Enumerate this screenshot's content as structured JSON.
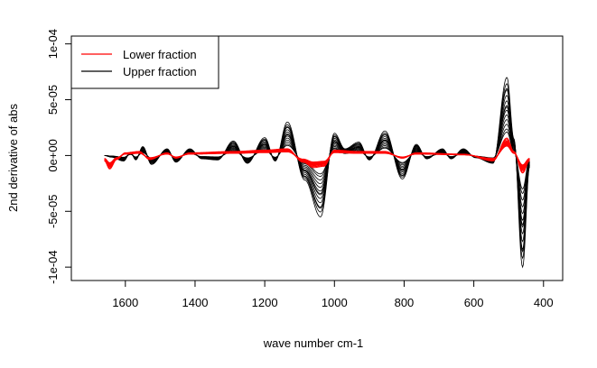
{
  "chart_data": {
    "type": "line",
    "title": "",
    "xlabel": "wave number cm-1",
    "ylabel": "2nd derivative of abs",
    "xlim": [
      1755,
      345
    ],
    "ylim": [
      -0.000112,
      0.000107
    ],
    "x_axis_reversed": true,
    "xticks": [
      1600,
      1400,
      1200,
      1000,
      800,
      600,
      400
    ],
    "xtick_labels": [
      "1600",
      "1400",
      "1200",
      "1000",
      "800",
      "600",
      "400"
    ],
    "yticks": [
      -0.0001,
      -5e-05,
      0,
      5e-05,
      0.0001
    ],
    "ytick_labels": [
      "-1e-04",
      "-5e-05",
      "0e+00",
      "5e-05",
      "1e-04"
    ],
    "grid": false,
    "legend": {
      "placement": "top-left",
      "entries": [
        {
          "label": "Lower fraction",
          "color": "#ff0000"
        },
        {
          "label": "Upper fraction",
          "color": "#000000"
        }
      ]
    },
    "x_range": [
      1660,
      440
    ],
    "series": [
      {
        "legend_label": "Upper fraction",
        "color": "#000000",
        "count": 14,
        "peaks": [
          {
            "x": 1660,
            "y": 0.0
          },
          {
            "x": 1640,
            "y": -1.5e-06
          },
          {
            "x": 1605,
            "y": -5e-06
          },
          {
            "x": 1585,
            "y": 3e-06
          },
          {
            "x": 1570,
            "y": -4e-06
          },
          {
            "x": 1550,
            "y": 8e-06
          },
          {
            "x": 1525,
            "y": -8e-06
          },
          {
            "x": 1480,
            "y": 6e-06
          },
          {
            "x": 1455,
            "y": -6e-06
          },
          {
            "x": 1415,
            "y": 6e-06
          },
          {
            "x": 1380,
            "y": -3e-06
          },
          {
            "x": 1335,
            "y": -4e-06
          },
          {
            "x": 1290,
            "y": 1.3e-05
          },
          {
            "x": 1250,
            "y": -7e-06
          },
          {
            "x": 1200,
            "y": 1.6e-05
          },
          {
            "x": 1170,
            "y": -5e-06
          },
          {
            "x": 1135,
            "y": 3e-05
          },
          {
            "x": 1085,
            "y": -2.2e-05
          },
          {
            "x": 1040,
            "y": -5.5e-05
          },
          {
            "x": 1000,
            "y": 2e-05
          },
          {
            "x": 970,
            "y": 6e-06
          },
          {
            "x": 930,
            "y": 1.2e-05
          },
          {
            "x": 900,
            "y": -4e-06
          },
          {
            "x": 855,
            "y": 2.2e-05
          },
          {
            "x": 805,
            "y": -2.1e-05
          },
          {
            "x": 765,
            "y": 1e-05
          },
          {
            "x": 735,
            "y": -3e-06
          },
          {
            "x": 690,
            "y": 6e-06
          },
          {
            "x": 665,
            "y": -3e-06
          },
          {
            "x": 630,
            "y": 6e-06
          },
          {
            "x": 595,
            "y": -2e-06
          },
          {
            "x": 545,
            "y": -7e-06
          },
          {
            "x": 505,
            "y": 7e-05
          },
          {
            "x": 485,
            "y": 1.5e-05
          },
          {
            "x": 460,
            "y": -0.0001
          },
          {
            "x": 440,
            "y": -1e-05
          }
        ]
      },
      {
        "legend_label": "Lower fraction",
        "color": "#ff0000",
        "count": 10,
        "peaks": [
          {
            "x": 1660,
            "y": -4e-06
          },
          {
            "x": 1645,
            "y": -1e-05
          },
          {
            "x": 1625,
            "y": -3e-06
          },
          {
            "x": 1600,
            "y": 2e-06
          },
          {
            "x": 1560,
            "y": 3e-06
          },
          {
            "x": 1530,
            "y": -3e-06
          },
          {
            "x": 1480,
            "y": 2e-06
          },
          {
            "x": 1455,
            "y": -2e-06
          },
          {
            "x": 1415,
            "y": 2e-06
          },
          {
            "x": 1290,
            "y": 3e-06
          },
          {
            "x": 1200,
            "y": 4e-06
          },
          {
            "x": 1135,
            "y": 5e-06
          },
          {
            "x": 1090,
            "y": -5e-06
          },
          {
            "x": 1060,
            "y": -9e-06
          },
          {
            "x": 1030,
            "y": -8e-06
          },
          {
            "x": 1000,
            "y": 4e-06
          },
          {
            "x": 930,
            "y": 3e-06
          },
          {
            "x": 855,
            "y": 3e-06
          },
          {
            "x": 805,
            "y": -2e-06
          },
          {
            "x": 765,
            "y": 2e-06
          },
          {
            "x": 630,
            "y": 1e-06
          },
          {
            "x": 545,
            "y": -4e-06
          },
          {
            "x": 505,
            "y": 1.3e-05
          },
          {
            "x": 485,
            "y": 3e-06
          },
          {
            "x": 460,
            "y": -1.3e-05
          },
          {
            "x": 440,
            "y": -4e-06
          }
        ]
      }
    ]
  }
}
